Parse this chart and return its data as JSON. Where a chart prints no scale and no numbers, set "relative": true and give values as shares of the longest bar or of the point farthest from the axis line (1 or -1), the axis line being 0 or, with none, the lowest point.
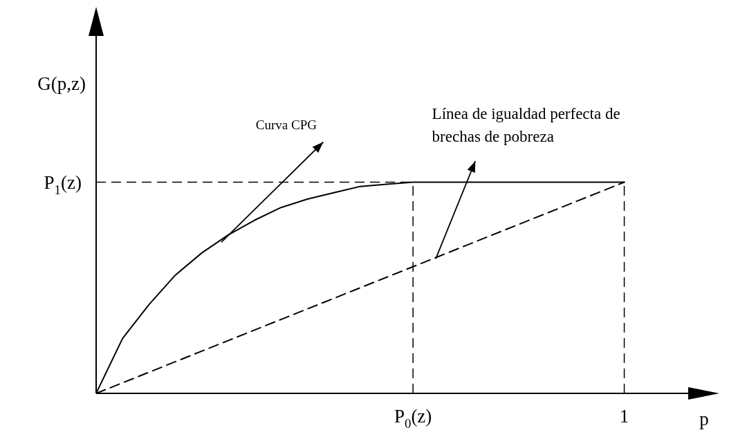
{
  "chart_data": {
    "type": "line",
    "relative": true,
    "xlabel": "p",
    "ylabel": "G(p,z)",
    "categories": [
      null,
      null,
      null,
      null,
      null,
      null,
      null,
      null,
      null,
      null,
      null,
      null,
      "P$_{0}$(z)",
      null,
      null,
      null,
      null,
      null,
      null,
      null,
      "1"
    ],
    "series": [
      {
        "name": "Curva CPG",
        "color": "#000000",
        "line_style": "solid",
        "values": [
          0,
          0.26,
          0.42,
          0.56,
          0.665,
          0.75,
          0.82,
          0.88,
          0.92,
          0.95,
          0.98,
          0.99,
          1,
          1,
          1,
          1,
          1,
          1,
          1,
          1,
          1
        ]
      },
      {
        "name": "Línea de igualdad perfecta de brechas de pobreza",
        "color": "#000000",
        "line_style": "dashed",
        "values": [
          0,
          0.05,
          0.1,
          0.15,
          0.2,
          0.25,
          0.3,
          0.35,
          0.4,
          0.45,
          0.5,
          0.55,
          0.6,
          0.65,
          0.7,
          0.75,
          0.8,
          0.85,
          0.9,
          0.95,
          1
        ]
      }
    ],
    "ref_lines": [
      {
        "axis": "x",
        "value": "P$_{0}$(z)",
        "line_style": "dashed"
      },
      {
        "axis": "x",
        "value": "1",
        "line_style": "dashed"
      },
      {
        "axis": "y",
        "value": 1,
        "label": "P$_{1}$(z)",
        "line_style": "dashed"
      }
    ],
    "marker": "none",
    "legend": false
  }
}
